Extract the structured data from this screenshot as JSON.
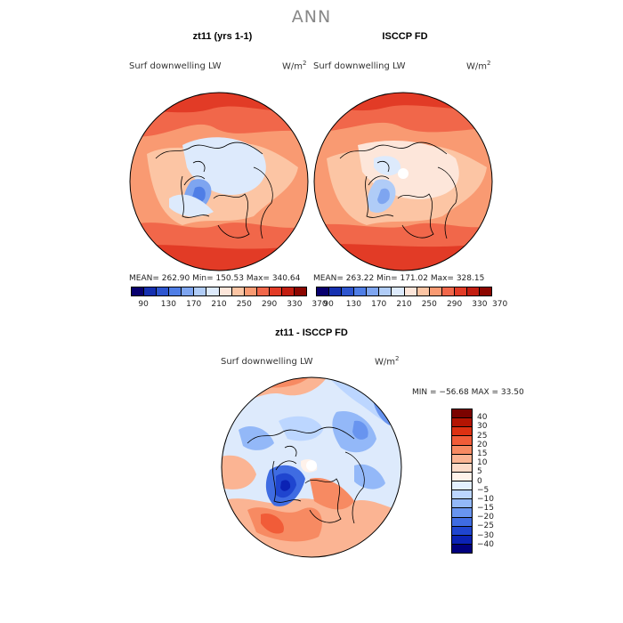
{
  "page_title": "ANN",
  "panels": [
    {
      "title": "zt11 (yrs 1-1)",
      "variable": "Surf downwelling LW",
      "unit_base": "W/m",
      "unit_exp": "2",
      "stats": "MEAN= 262.90   Min= 150.53   Max= 340.64"
    },
    {
      "title": "ISCCP FD",
      "variable": "Surf downwelling LW",
      "unit_base": "W/m",
      "unit_exp": "2",
      "stats": "MEAN= 263.22   Min= 171.02   Max= 328.15"
    },
    {
      "title": "zt11 - ISCCP FD",
      "variable": "Surf downwelling LW",
      "unit_base": "W/m",
      "unit_exp": "2",
      "stats": "MIN = −56.68  MAX =  33.50"
    }
  ],
  "abs_colorbar": {
    "colors": [
      "#08006e",
      "#1530b0",
      "#2d55cf",
      "#4f7ee6",
      "#7ea5f0",
      "#b0ccf7",
      "#ddeafc",
      "#fde6da",
      "#fcc5a4",
      "#f99a72",
      "#f1674a",
      "#e23b26",
      "#c21d10",
      "#8c0600"
    ],
    "labels": [
      "90",
      "130",
      "170",
      "210",
      "250",
      "290",
      "330",
      "370"
    ]
  },
  "diff_colorbar": {
    "colors": [
      "#7b0300",
      "#b41503",
      "#dd3112",
      "#f15c38",
      "#f78a62",
      "#fbb493",
      "#fddac8",
      "#fff2ea",
      "#e3efff",
      "#bcd6ff",
      "#93b8f8",
      "#6894ef",
      "#3f6ce2",
      "#1f45cf",
      "#0b22b4",
      "#01007e"
    ],
    "labels": [
      "40",
      "30",
      "25",
      "20",
      "15",
      "10",
      "5",
      "0",
      "−5",
      "−10",
      "−15",
      "−20",
      "−25",
      "−30",
      "−40"
    ]
  }
}
